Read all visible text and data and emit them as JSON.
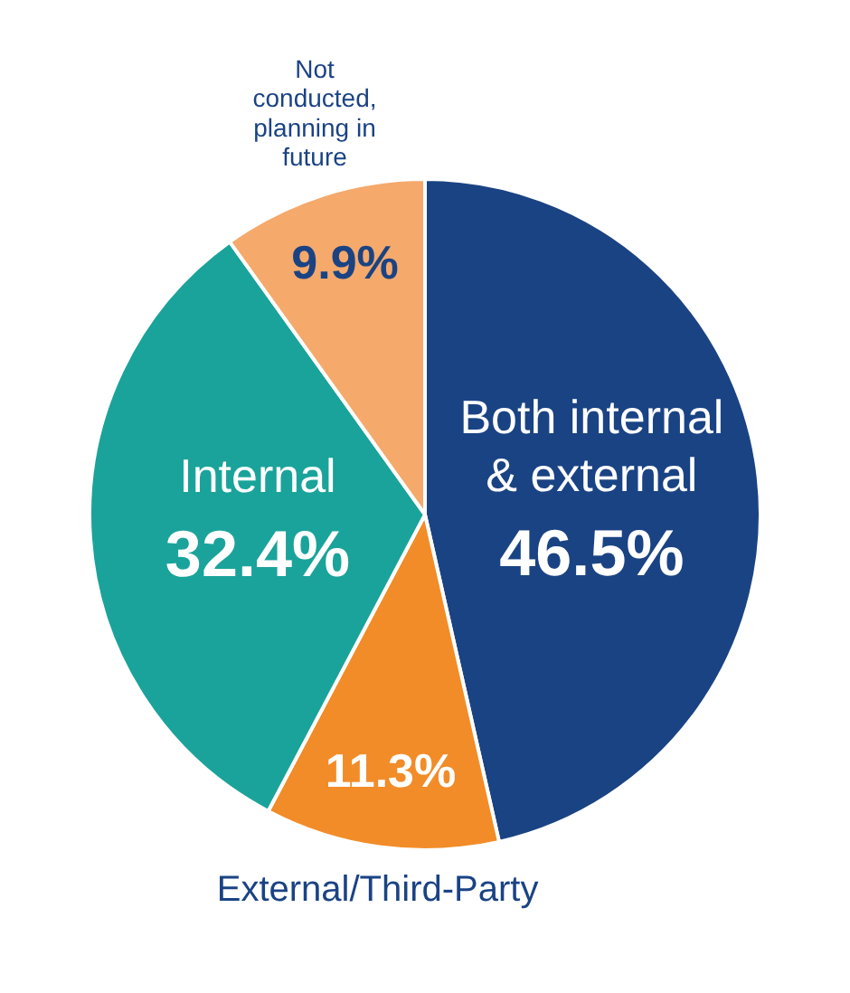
{
  "chart_data": {
    "type": "pie",
    "categories": [
      "Both internal & external",
      "External/Third-Party",
      "Internal",
      "Not conducted, planning in future"
    ],
    "values": [
      46.5,
      11.3,
      32.4,
      9.9
    ],
    "colors": [
      "#1a4384",
      "#f28c28",
      "#1aa39a",
      "#f5a96b"
    ],
    "value_labels": [
      "46.5%",
      "11.3%",
      "32.4%",
      "9.9%"
    ],
    "legend": false
  }
}
